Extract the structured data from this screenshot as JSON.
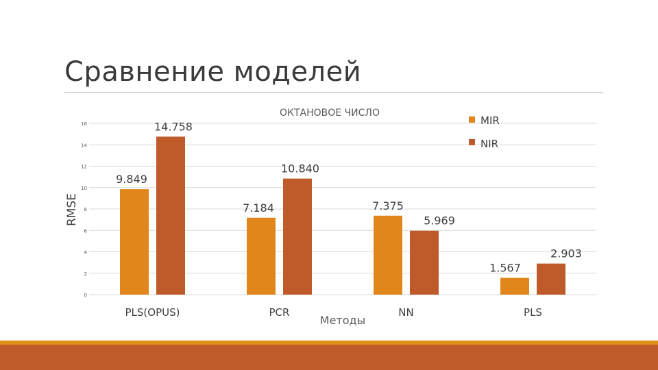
{
  "slide": {
    "title": "Сравнение моделей"
  },
  "chart_data": {
    "type": "bar",
    "title": "ОКТАНОВОЕ ЧИСЛО",
    "xlabel": "Методы",
    "ylabel": "RMSE",
    "categories": [
      "PLS(OPUS)",
      "PCR",
      "NN",
      "PLS"
    ],
    "series": [
      {
        "name": "MIR",
        "color": "#e0861a",
        "values": [
          9.849,
          7.184,
          7.375,
          1.567
        ],
        "labels": [
          "9.849",
          "7.184",
          "7.375",
          "1.567"
        ]
      },
      {
        "name": "NIR",
        "color": "#bf5a2a",
        "values": [
          14.758,
          10.84,
          5.969,
          2.903
        ],
        "labels": [
          "14.758",
          "10.840",
          "5.969",
          "2.903"
        ]
      }
    ],
    "ylim": [
      0,
      16
    ],
    "yticks": [
      "0",
      "2",
      "4",
      "6",
      "8",
      "10",
      "12",
      "14",
      "16"
    ],
    "grid": true,
    "legend": "top-right"
  },
  "colors": {
    "accent_orange": "#e0901a",
    "accent_rust": "#bf5a2a",
    "title_text": "#3a3a3a"
  }
}
